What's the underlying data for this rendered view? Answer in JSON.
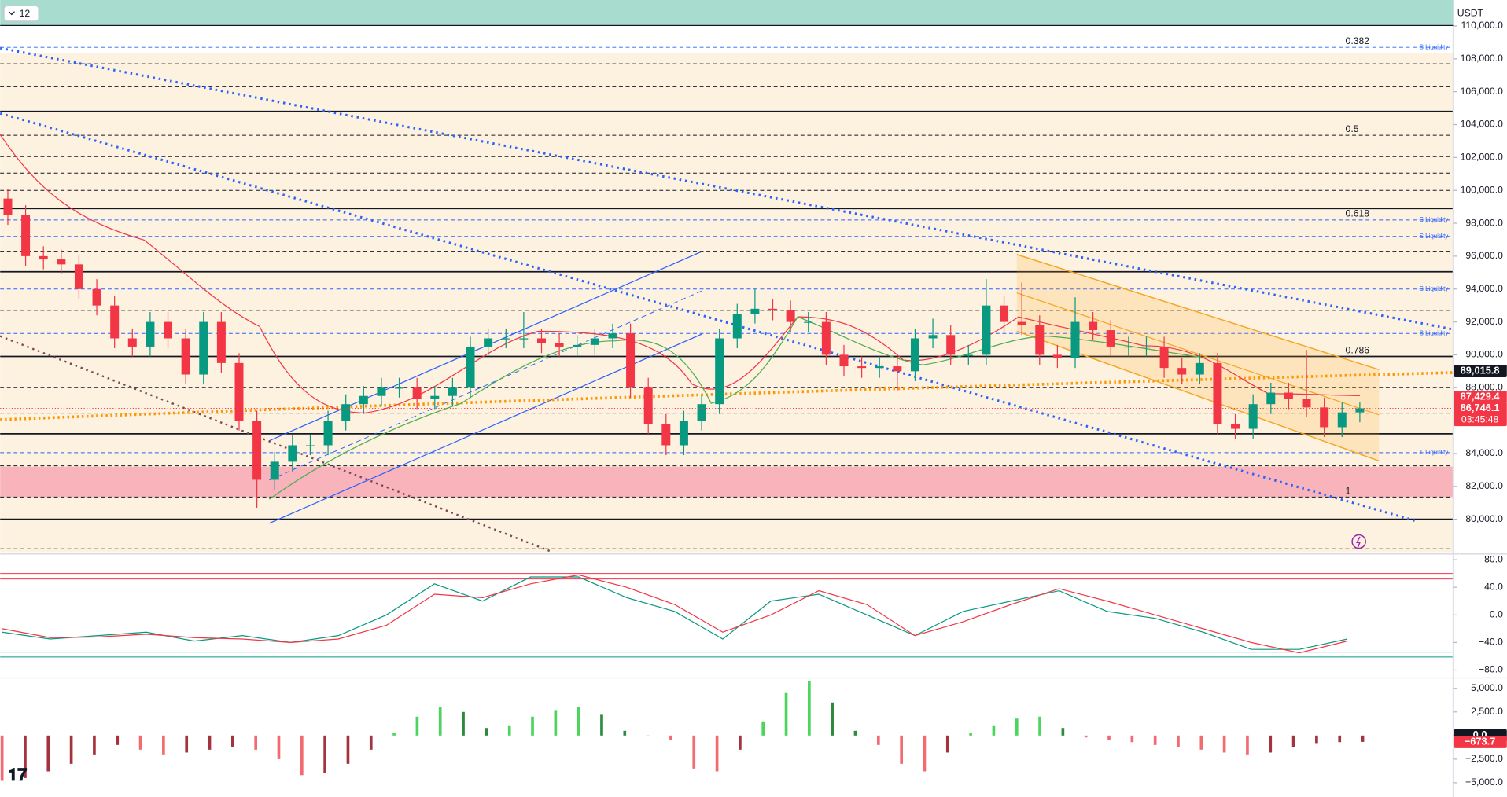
{
  "header": {
    "interval": "12",
    "currency": "USDT"
  },
  "chart_data": [
    {
      "type": "candlestick",
      "open": [
        99500,
        98500,
        96000,
        95800,
        95500,
        94000,
        93000,
        91000,
        90500,
        92000,
        91000,
        88800,
        92000,
        89500,
        86000,
        82400,
        83500,
        84500,
        84500,
        86000,
        87000,
        87500,
        88000,
        88000,
        87300,
        87500,
        88000,
        90500,
        91000,
        91000,
        91000,
        90700,
        90500,
        90600,
        91000,
        91300,
        88000,
        85800,
        84500,
        86000,
        87000,
        91000,
        92500,
        92800,
        92700,
        92000,
        92000,
        90000,
        89300,
        89200,
        89300,
        89000,
        91000,
        91200,
        90000,
        90000,
        93000,
        92000,
        91800,
        90000,
        89800,
        92000,
        91500,
        90500,
        90500,
        90500,
        89200,
        88800,
        89500,
        85800,
        85500,
        87000,
        87700,
        87300,
        86800,
        85600,
        86500
      ],
      "high": [
        100100,
        99100,
        96600,
        96400,
        96100,
        94600,
        93600,
        91600,
        92600,
        92600,
        91600,
        92600,
        92600,
        90100,
        86600,
        84100,
        85100,
        85100,
        86600,
        87600,
        88100,
        88600,
        88600,
        88600,
        88100,
        88600,
        91100,
        91600,
        91600,
        92600,
        91600,
        91300,
        91200,
        91600,
        91900,
        91900,
        88600,
        86400,
        86600,
        87600,
        91600,
        93100,
        94000,
        93400,
        93300,
        92600,
        92600,
        90600,
        89900,
        89900,
        89900,
        91600,
        92200,
        91800,
        90600,
        94600,
        93600,
        94400,
        92400,
        90600,
        93500,
        92600,
        92100,
        91100,
        91100,
        91100,
        89800,
        90100,
        90100,
        86400,
        87600,
        88300,
        88300,
        90300,
        87400,
        87100,
        87100
      ],
      "low": [
        97900,
        95400,
        95200,
        94900,
        93400,
        92400,
        90400,
        89900,
        89900,
        90400,
        88200,
        88200,
        88900,
        85400,
        80700,
        81800,
        82900,
        83900,
        83900,
        85400,
        86400,
        86900,
        87400,
        86700,
        86700,
        86900,
        87400,
        89900,
        90400,
        90400,
        90100,
        89900,
        89900,
        90000,
        90400,
        87400,
        85200,
        83900,
        83900,
        85400,
        86400,
        90400,
        91900,
        92100,
        91400,
        91400,
        89400,
        88700,
        88600,
        88600,
        87800,
        88400,
        90400,
        89400,
        89400,
        89400,
        91400,
        91200,
        89400,
        89200,
        89200,
        90900,
        89900,
        89900,
        89900,
        88600,
        88200,
        88200,
        85200,
        84900,
        84900,
        86400,
        86700,
        86200,
        85000,
        85000,
        85900
      ],
      "close": [
        98500,
        96000,
        95800,
        95500,
        94000,
        93000,
        91000,
        90500,
        92000,
        91000,
        88800,
        92000,
        89500,
        86000,
        82400,
        83500,
        84500,
        84500,
        86000,
        87000,
        87500,
        88000,
        88000,
        87300,
        87500,
        88000,
        90500,
        91000,
        91000,
        91000,
        90700,
        90500,
        90600,
        91000,
        91300,
        88000,
        85800,
        84500,
        86000,
        87000,
        91000,
        92500,
        92800,
        92700,
        92000,
        92000,
        90000,
        89300,
        89200,
        89300,
        89000,
        91000,
        91200,
        90000,
        90000,
        93000,
        92000,
        91800,
        90000,
        89800,
        92000,
        91500,
        90500,
        90500,
        90500,
        89200,
        88800,
        89500,
        85800,
        85500,
        87000,
        87700,
        87300,
        86800,
        85600,
        86500,
        86746
      ],
      "up_color": "#089981",
      "down_color": "#f23645",
      "ylim": [
        78000,
        110000
      ],
      "yticks": [
        {
          "value": 80000,
          "label": "80,000.0"
        },
        {
          "value": 82000,
          "label": "82,000.0"
        },
        {
          "value": 84000,
          "label": "84,000.0"
        },
        {
          "value": 86000,
          "label": "86,000.0"
        },
        {
          "value": 88000,
          "label": "88,000.0"
        },
        {
          "value": 90000,
          "label": "90,000.0"
        },
        {
          "value": 92000,
          "label": "92,000.0"
        },
        {
          "value": 94000,
          "label": "94,000.0"
        },
        {
          "value": 96000,
          "label": "96,000.0"
        },
        {
          "value": 98000,
          "label": "98,000.0"
        },
        {
          "value": 100000,
          "label": "100,000.0"
        },
        {
          "value": 102000,
          "label": "102,000.0"
        },
        {
          "value": 104000,
          "label": "104,000.0"
        },
        {
          "value": 106000,
          "label": "106,000.0"
        },
        {
          "value": 108000,
          "label": "108,000.0"
        },
        {
          "value": 110000,
          "label": "110,000.0"
        }
      ],
      "zones": [
        {
          "from": 78000,
          "to": 108350,
          "color": "#fdf1df"
        },
        {
          "from": 81350,
          "to": 83200,
          "color": "#f8b3bb"
        }
      ],
      "solid_levels": [
        104800,
        98900,
        95050,
        89900,
        85200,
        80000
      ],
      "dashed_levels": [
        107700,
        106300,
        103350,
        102050,
        101050,
        100000,
        96300,
        92700,
        88000,
        86450,
        83250,
        81350,
        78200
      ],
      "liquidity": [
        {
          "label": "S Liquidity",
          "price": 108700
        },
        {
          "label": "S Liquidity",
          "price": 98200
        },
        {
          "label": "S Liquidity",
          "price": 97200
        },
        {
          "label": "S Liquidity",
          "price": 94000
        },
        {
          "label": "S Liquidity",
          "price": 91300
        },
        {
          "label": "L Liquidity",
          "price": 84050
        }
      ],
      "liquidity_color": "#2962ff",
      "fib_levels": [
        {
          "ratio": 0.382,
          "price": 108700
        },
        {
          "ratio": 0.5,
          "price": 103350
        },
        {
          "ratio": 0.618,
          "price": 98200
        },
        {
          "ratio": 0.786,
          "price": 89900
        },
        {
          "ratio": 1,
          "price": 81350
        }
      ],
      "price_tags": [
        {
          "value": 89015.8,
          "label": "89,015.8",
          "color": "#131722"
        },
        {
          "value": 87429.4,
          "label": "87,429.4",
          "color": "#f23645"
        },
        {
          "value": 86746.1,
          "label": "86,746.1",
          "countdown": "03:45:48",
          "color": "#f23645"
        }
      ]
    },
    {
      "type": "line",
      "series": [
        {
          "color": "#089981",
          "values": [
            -25,
            -35,
            -30,
            -25,
            -38,
            -30,
            -40,
            -30,
            0,
            45,
            20,
            55,
            55,
            25,
            5,
            -35,
            20,
            30,
            0,
            -30,
            5,
            20,
            35,
            5,
            -5,
            -25,
            -50,
            -50,
            -35
          ]
        },
        {
          "color": "#f23645",
          "values": [
            -20,
            -33,
            -32,
            -28,
            -33,
            -35,
            -40,
            -35,
            -15,
            30,
            25,
            45,
            58,
            40,
            15,
            -25,
            0,
            35,
            15,
            -30,
            -10,
            15,
            38,
            20,
            0,
            -20,
            -40,
            -55,
            -38
          ]
        }
      ],
      "bands": [
        {
          "value": 60,
          "color": "#f23645"
        },
        {
          "value": 52,
          "color": "#f23645"
        },
        {
          "value": -54,
          "color": "#089981"
        },
        {
          "value": -61,
          "color": "#089981"
        }
      ],
      "ylim": [
        -90,
        84
      ],
      "yticks": [
        {
          "value": 80,
          "label": "80.0"
        },
        {
          "value": 40,
          "label": "40.0"
        },
        {
          "value": 0,
          "label": "0.0"
        },
        {
          "value": -40,
          "label": "−40.0"
        },
        {
          "value": -80,
          "label": "−80.0"
        }
      ]
    },
    {
      "type": "histogram",
      "values": [
        -4800,
        -4500,
        -3800,
        -3000,
        -2000,
        -1000,
        -1500,
        -2000,
        -1800,
        -1500,
        -1200,
        -1500,
        -2500,
        -4200,
        -4000,
        -3000,
        -1500,
        300,
        2000,
        3000,
        2500,
        800,
        1000,
        2000,
        2700,
        3000,
        2200,
        500,
        0,
        -500,
        -3500,
        -3800,
        -1500,
        1500,
        4500,
        5800,
        3500,
        500,
        -1000,
        -3000,
        -3800,
        -1800,
        300,
        1000,
        1800,
        2000,
        800,
        -200,
        -500,
        -700,
        -1000,
        -1200,
        -1500,
        -1800,
        -2000,
        -1800,
        -1200,
        -800,
        -700,
        -673.7
      ],
      "palette": {
        "positive_rising": "#4cd45c",
        "positive_falling": "#2e8b3e",
        "negative_falling": "#f26b70",
        "negative_rising": "#a3333d"
      },
      "ylim": [
        -6100,
        6000
      ],
      "yticks": [
        {
          "value": 5000,
          "label": "5,000.0"
        },
        {
          "value": 2500,
          "label": "2,500.0"
        },
        {
          "value": 0,
          "label": "0.0"
        },
        {
          "value": -2500,
          "label": "−2,500.0"
        },
        {
          "value": -5000,
          "label": "−5,000.0"
        }
      ],
      "value_tags": [
        {
          "value": 0,
          "label": "0.0",
          "color": "#131722"
        },
        {
          "value": -673.7,
          "label": "−673.7",
          "color": "#f23645"
        }
      ]
    }
  ]
}
